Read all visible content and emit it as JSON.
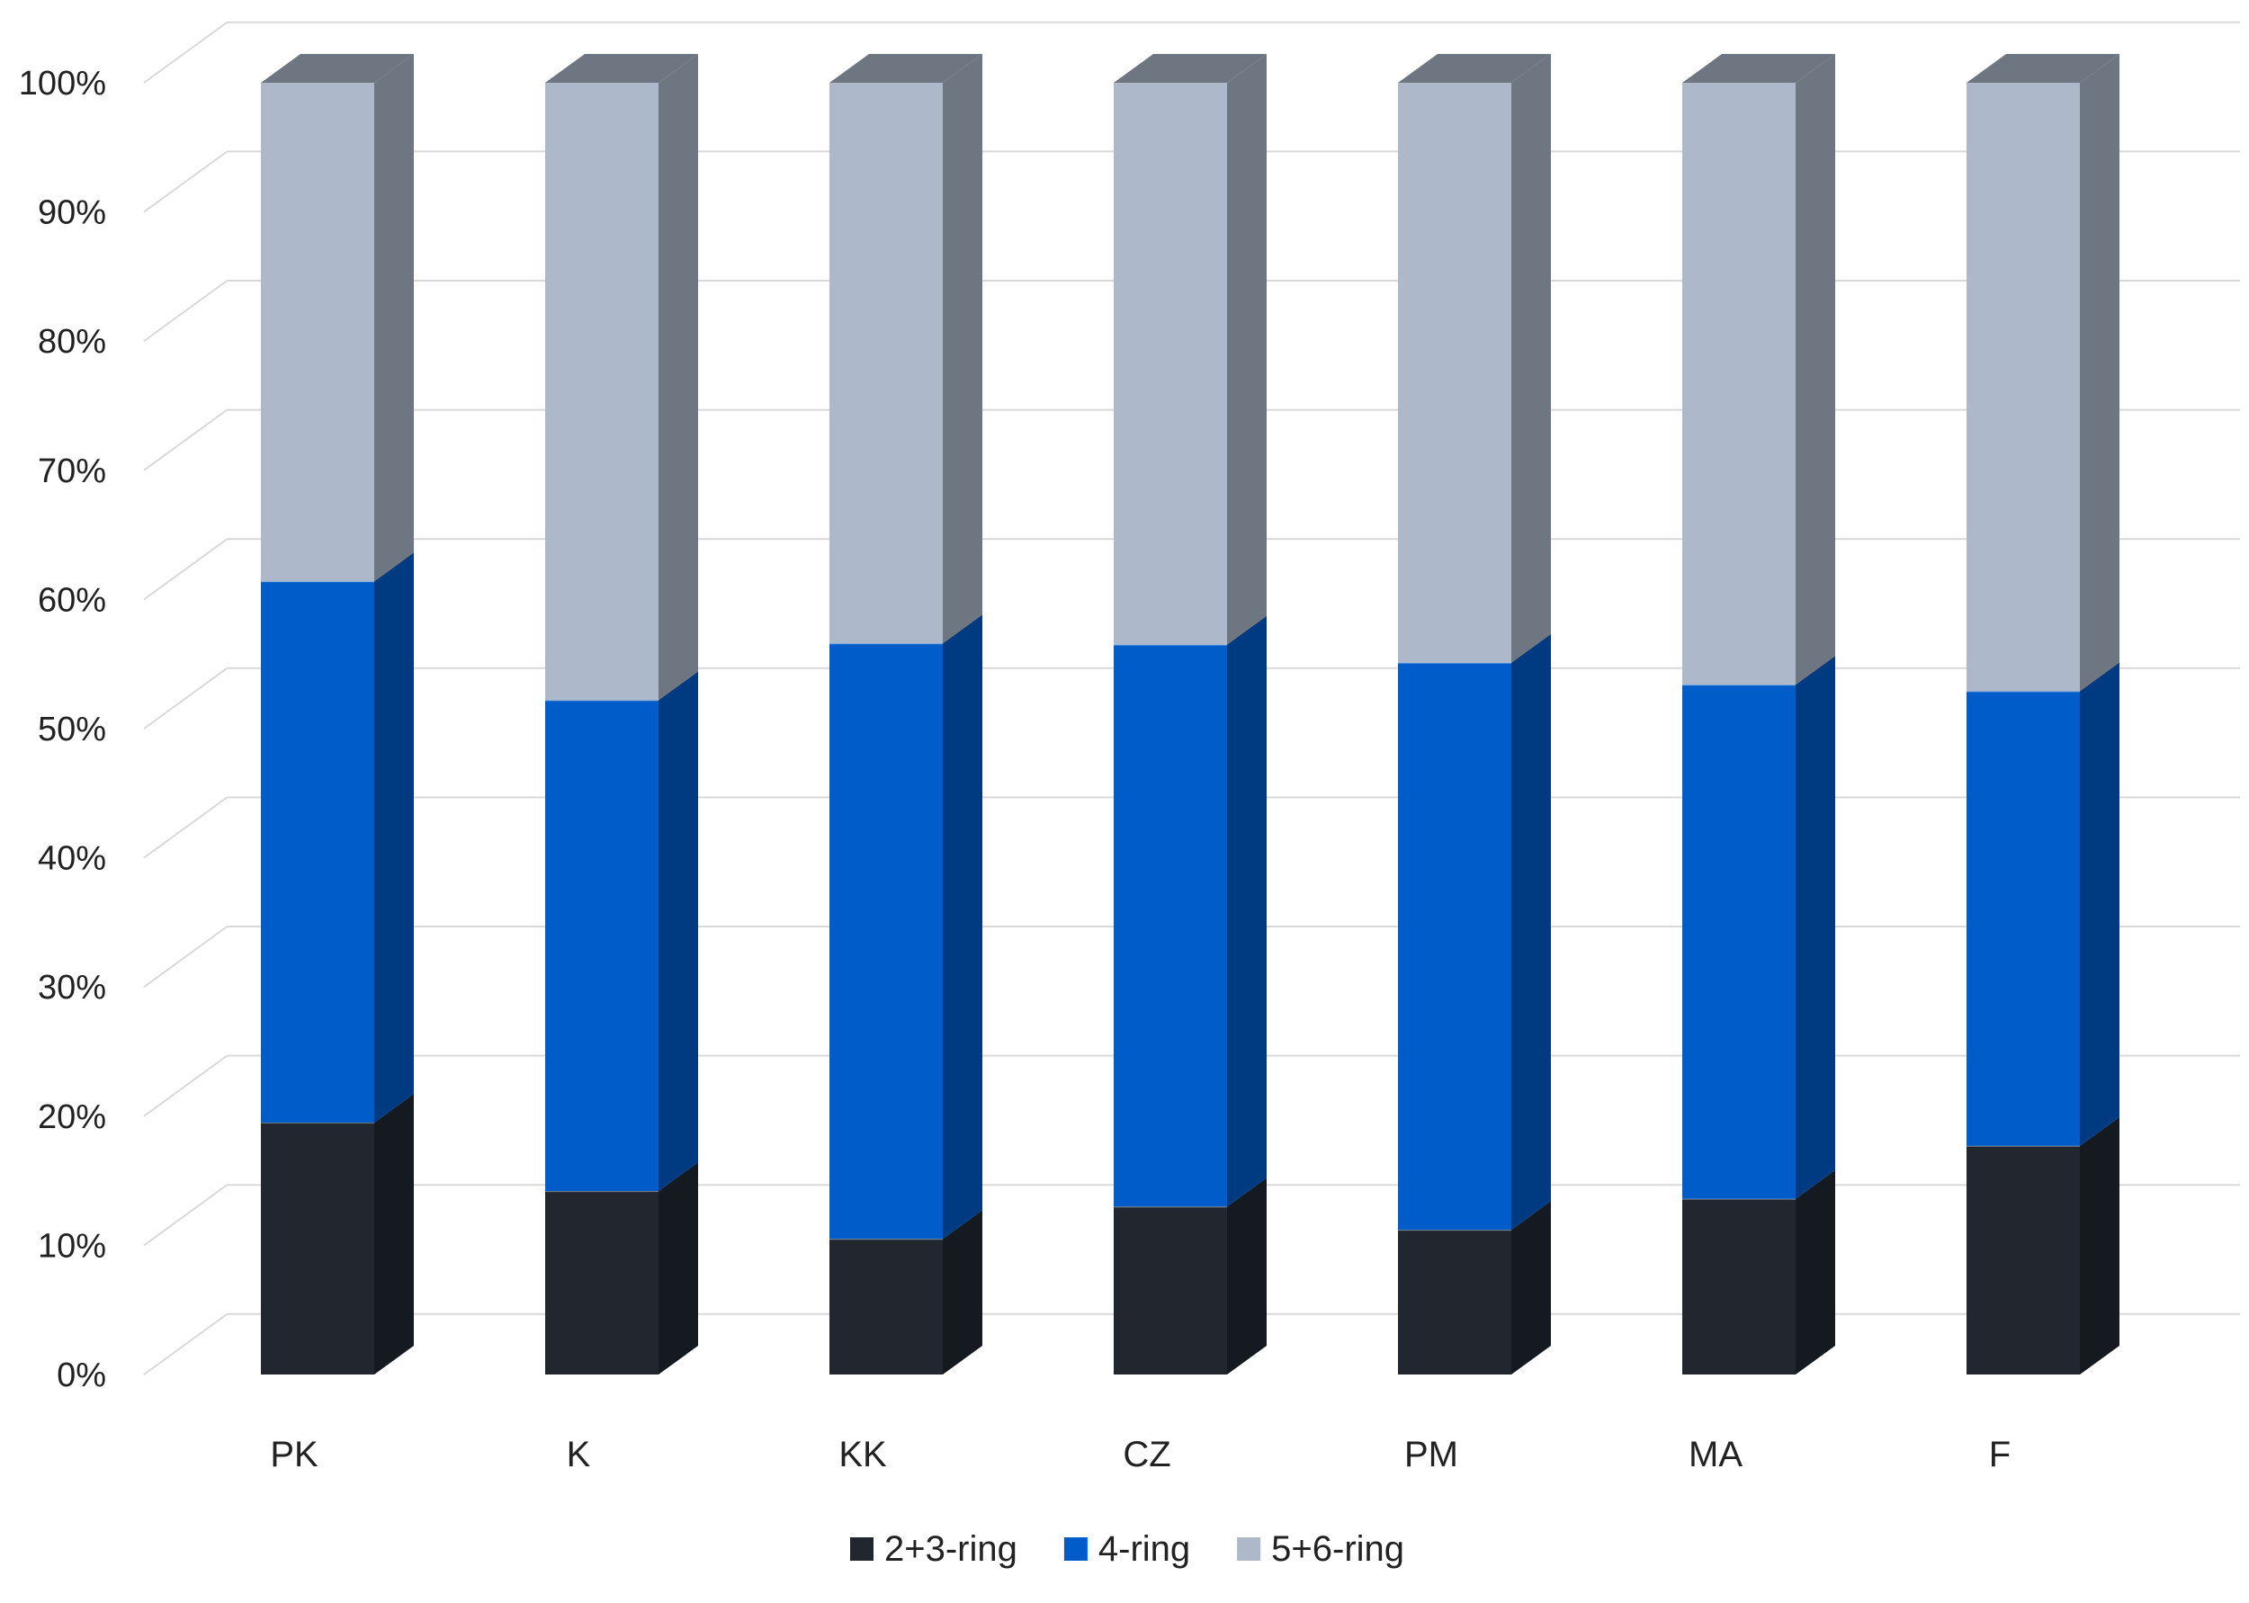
{
  "chart_data": {
    "type": "bar",
    "stacked": true,
    "percent": true,
    "three_d": true,
    "title": "",
    "xlabel": "",
    "ylabel": "",
    "ylim": [
      0,
      100
    ],
    "yticks": [
      0,
      10,
      20,
      30,
      40,
      50,
      60,
      70,
      80,
      90,
      100
    ],
    "ytick_labels": [
      "0%",
      "10%",
      "20%",
      "30%",
      "40%",
      "50%",
      "60%",
      "70%",
      "80%",
      "90%",
      "100%"
    ],
    "grid": true,
    "legend_position": "bottom-center",
    "categories": [
      "PK",
      "K",
      "KK",
      "CZ",
      "PM",
      "MA",
      "F"
    ],
    "series": [
      {
        "name": "2+3-ring",
        "color": "#22272F",
        "side_color": "#151A20",
        "values": [
          19.5,
          14.2,
          10.5,
          13.0,
          11.2,
          13.6,
          17.7
        ]
      },
      {
        "name": "4-ring",
        "color": "#005CC8",
        "side_color": "#003A80",
        "values": [
          41.9,
          38.0,
          46.1,
          43.5,
          43.9,
          39.8,
          35.2
        ]
      },
      {
        "name": "5+6-ring",
        "color": "#ADB8CA",
        "side_color": "#6E7681",
        "values": [
          38.6,
          47.8,
          43.4,
          43.5,
          44.9,
          46.6,
          47.1
        ]
      }
    ]
  }
}
